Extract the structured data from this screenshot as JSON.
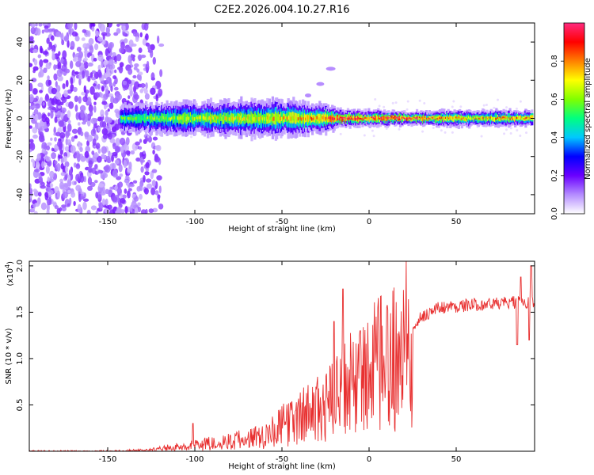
{
  "title": "C2E2.2026.004.10.27.R16",
  "chart_data": [
    {
      "type": "heatmap",
      "name": "spectrogram",
      "xlabel": "Height of straight line (km)",
      "ylabel": "Frequency (Hz)",
      "xlim": [
        -195,
        95
      ],
      "ylim": [
        -50,
        50
      ],
      "xticks": [
        -150,
        -100,
        -50,
        0,
        50
      ],
      "yticks": [
        -40,
        -20,
        0,
        20,
        40
      ],
      "colorbar": {
        "label": "Normalized spectral amplitude",
        "range": [
          0,
          1
        ],
        "ticks": [
          0.0,
          0.2,
          0.4,
          0.6,
          0.8
        ],
        "colors": [
          "#ffffff",
          "#b48cff",
          "#6a00ff",
          "#0000ff",
          "#00c8ff",
          "#00ff80",
          "#80ff00",
          "#ffff00",
          "#ff8000",
          "#ff0000",
          "#ff2a80"
        ]
      },
      "noise_region_km": [
        -195,
        -127
      ],
      "signal_band": [
        {
          "x": -143,
          "half_width_hz": 5,
          "peak": 0.55
        },
        {
          "x": -100,
          "half_width_hz": 6,
          "peak": 0.65
        },
        {
          "x": -60,
          "half_width_hz": 7,
          "peak": 0.7
        },
        {
          "x": -30,
          "half_width_hz": 6,
          "peak": 0.8
        },
        {
          "x": -15,
          "half_width_hz": 3,
          "peak": 0.95
        },
        {
          "x": 0,
          "half_width_hz": 3,
          "peak": 0.9
        },
        {
          "x": 20,
          "half_width_hz": 2.5,
          "peak": 0.95
        },
        {
          "x": 50,
          "half_width_hz": 3,
          "peak": 0.75
        },
        {
          "x": 93,
          "half_width_hz": 3,
          "peak": 0.8
        }
      ],
      "faint_branch": [
        [
          -45,
          8
        ],
        [
          -35,
          12
        ],
        [
          -28,
          18
        ],
        [
          -22,
          26
        ]
      ]
    },
    {
      "type": "line",
      "name": "snr",
      "xlabel": "Height of straight line (km)",
      "ylabel": "SNR (10 * v/v)",
      "scale_label": "(x10",
      "scale_exp": "4",
      "scale_close": ")",
      "color": "#e83030",
      "xlim": [
        -195,
        95
      ],
      "ylim": [
        0,
        2.05
      ],
      "xticks": [
        -150,
        -100,
        -50,
        0,
        50
      ],
      "yticks": [
        0.5,
        1.0,
        1.5,
        2.0
      ],
      "ytick_labels": [
        "0.5",
        "1.0",
        "1.5",
        "2.0"
      ],
      "trend": [
        [
          -195,
          0.0
        ],
        [
          -150,
          0.0
        ],
        [
          -130,
          0.01
        ],
        [
          -120,
          0.03
        ],
        [
          -110,
          0.05
        ],
        [
          -100,
          0.08
        ],
        [
          -90,
          0.1
        ],
        [
          -80,
          0.12
        ],
        [
          -70,
          0.15
        ],
        [
          -60,
          0.2
        ],
        [
          -50,
          0.3
        ],
        [
          -40,
          0.4
        ],
        [
          -30,
          0.5
        ],
        [
          -20,
          0.6
        ],
        [
          -10,
          0.8
        ],
        [
          0,
          0.95
        ],
        [
          10,
          1.05
        ],
        [
          20,
          1.25
        ],
        [
          30,
          1.45
        ],
        [
          40,
          1.55
        ],
        [
          60,
          1.58
        ],
        [
          80,
          1.6
        ],
        [
          95,
          1.62
        ]
      ],
      "spikes": [
        [
          -101,
          0.3
        ],
        [
          -15,
          1.75
        ],
        [
          -5,
          1.3
        ],
        [
          -20,
          1.4
        ],
        [
          87,
          1.88
        ],
        [
          93,
          2.0
        ],
        [
          85,
          1.15
        ],
        [
          92,
          1.2
        ]
      ]
    }
  ]
}
